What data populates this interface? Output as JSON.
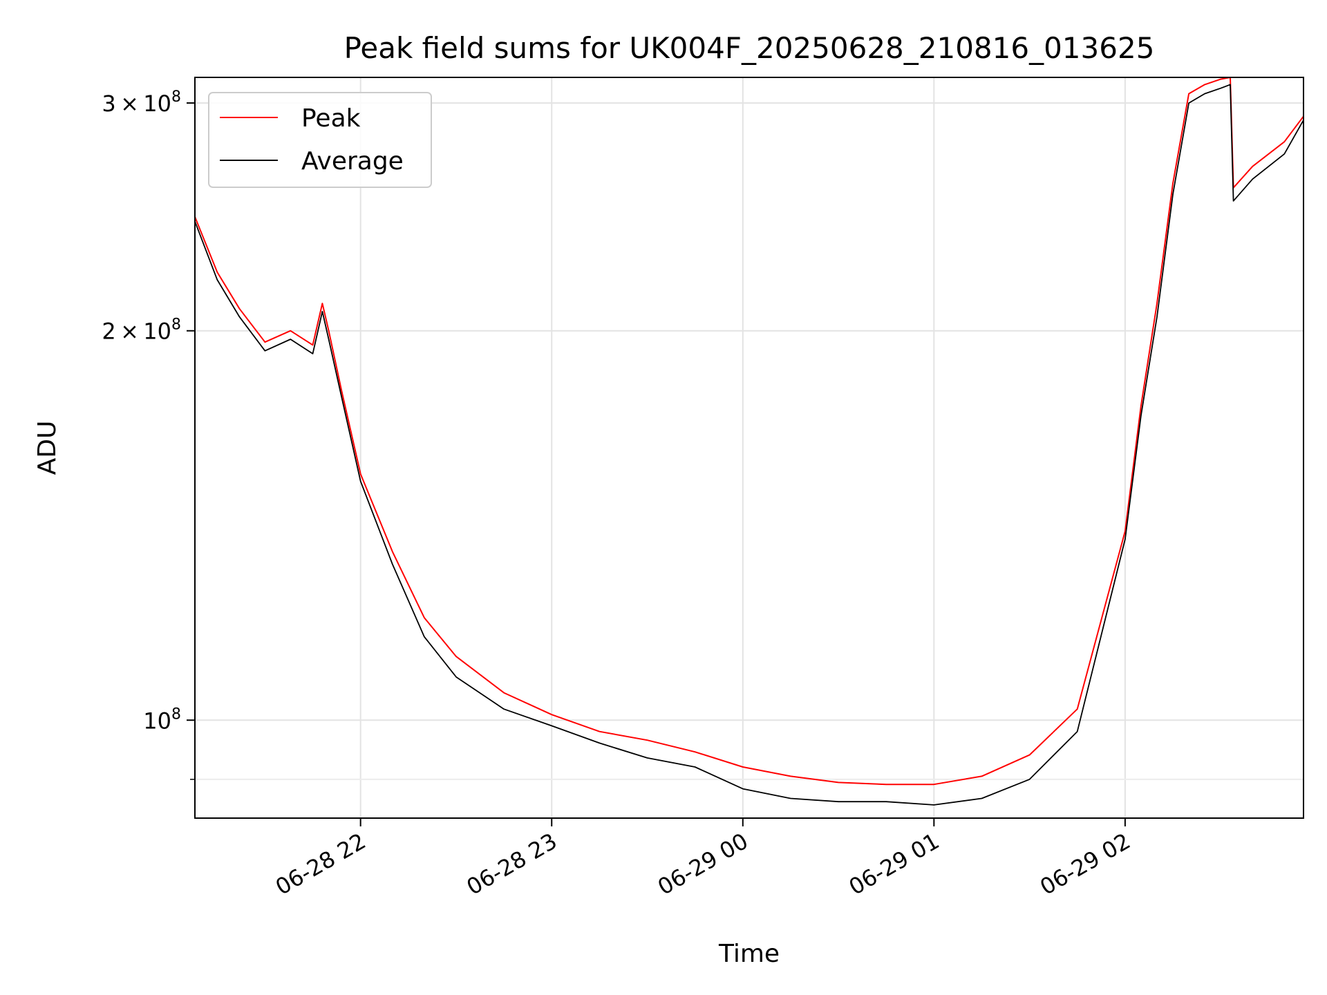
{
  "chart_data": {
    "type": "line",
    "title": "Peak field sums for UK004F_20250628_210816_013625",
    "xlabel": "Time",
    "ylabel": "ADU",
    "x_range": [
      "2025-06-28 21:08",
      "2025-06-29 02:56"
    ],
    "y_scale": "log",
    "ylim": [
      84000000.0,
      314000000.0
    ],
    "grid": true,
    "legend_position": "top-left",
    "x_ticks": [
      {
        "value": "2025-06-28 22:00",
        "label": "06-28 22"
      },
      {
        "value": "2025-06-28 23:00",
        "label": "06-28 23"
      },
      {
        "value": "2025-06-29 00:00",
        "label": "06-29 00"
      },
      {
        "value": "2025-06-29 01:00",
        "label": "06-29 01"
      },
      {
        "value": "2025-06-29 02:00",
        "label": "06-29 02"
      }
    ],
    "y_ticks": [
      {
        "value": 100000000,
        "mantissa": "",
        "exponent": "8",
        "base": "10"
      },
      {
        "value": 200000000,
        "mantissa": "2",
        "exponent": "8",
        "base": "10"
      },
      {
        "value": 300000000,
        "mantissa": "3",
        "exponent": "8",
        "base": "10"
      }
    ],
    "series": [
      {
        "name": "Peak",
        "color": "#ff0000",
        "x": [
          "2025-06-28 21:08",
          "2025-06-28 21:15",
          "2025-06-28 21:22",
          "2025-06-28 21:30",
          "2025-06-28 21:38",
          "2025-06-28 21:45",
          "2025-06-28 21:48",
          "2025-06-28 21:50",
          "2025-06-28 21:54",
          "2025-06-28 22:00",
          "2025-06-28 22:10",
          "2025-06-28 22:20",
          "2025-06-28 22:30",
          "2025-06-28 22:45",
          "2025-06-28 23:00",
          "2025-06-28 23:15",
          "2025-06-28 23:30",
          "2025-06-28 23:45",
          "2025-06-29 00:00",
          "2025-06-29 00:15",
          "2025-06-29 00:30",
          "2025-06-29 00:45",
          "2025-06-29 01:00",
          "2025-06-29 01:15",
          "2025-06-29 01:30",
          "2025-06-29 01:45",
          "2025-06-29 02:00",
          "2025-06-29 02:05",
          "2025-06-29 02:10",
          "2025-06-29 02:15",
          "2025-06-29 02:20",
          "2025-06-29 02:25",
          "2025-06-29 02:30",
          "2025-06-29 02:33",
          "2025-06-29 02:34",
          "2025-06-29 02:40",
          "2025-06-29 02:50",
          "2025-06-29 02:56"
        ],
        "y": [
          245000000,
          222000000,
          208000000,
          196000000,
          200000000,
          195000000,
          210000000,
          200000000,
          180000000,
          155000000,
          135000000,
          120000000,
          112000000,
          105000000,
          101000000,
          98000000,
          96500000,
          94500000,
          92000000,
          90500000,
          89500000,
          89200000,
          89200000,
          90500000,
          94000000,
          102000000,
          140000000,
          175000000,
          210000000,
          260000000,
          305000000,
          310000000,
          313000000,
          314000000,
          258000000,
          268000000,
          280000000,
          293000000
        ]
      },
      {
        "name": "Average",
        "color": "#000000",
        "x": [
          "2025-06-28 21:08",
          "2025-06-28 21:15",
          "2025-06-28 21:22",
          "2025-06-28 21:30",
          "2025-06-28 21:38",
          "2025-06-28 21:45",
          "2025-06-28 21:48",
          "2025-06-28 21:50",
          "2025-06-28 21:54",
          "2025-06-28 22:00",
          "2025-06-28 22:10",
          "2025-06-28 22:20",
          "2025-06-28 22:30",
          "2025-06-28 22:45",
          "2025-06-28 23:00",
          "2025-06-28 23:15",
          "2025-06-28 23:30",
          "2025-06-28 23:45",
          "2025-06-29 00:00",
          "2025-06-29 00:15",
          "2025-06-29 00:30",
          "2025-06-29 00:45",
          "2025-06-29 01:00",
          "2025-06-29 01:15",
          "2025-06-29 01:30",
          "2025-06-29 01:45",
          "2025-06-29 02:00",
          "2025-06-29 02:05",
          "2025-06-29 02:10",
          "2025-06-29 02:15",
          "2025-06-29 02:20",
          "2025-06-29 02:25",
          "2025-06-29 02:30",
          "2025-06-29 02:33",
          "2025-06-29 02:34",
          "2025-06-29 02:40",
          "2025-06-29 02:50",
          "2025-06-29 02:56"
        ],
        "y": [
          243000000,
          219000000,
          205000000,
          193000000,
          197000000,
          192000000,
          207000000,
          197000000,
          178000000,
          153000000,
          132000000,
          116000000,
          108000000,
          102000000,
          99000000,
          96000000,
          93500000,
          92000000,
          88500000,
          87000000,
          86500000,
          86500000,
          86000000,
          87000000,
          90000000,
          98000000,
          138000000,
          172000000,
          205000000,
          255000000,
          300000000,
          305000000,
          308000000,
          310000000,
          252000000,
          262000000,
          274000000,
          291000000
        ]
      }
    ]
  }
}
